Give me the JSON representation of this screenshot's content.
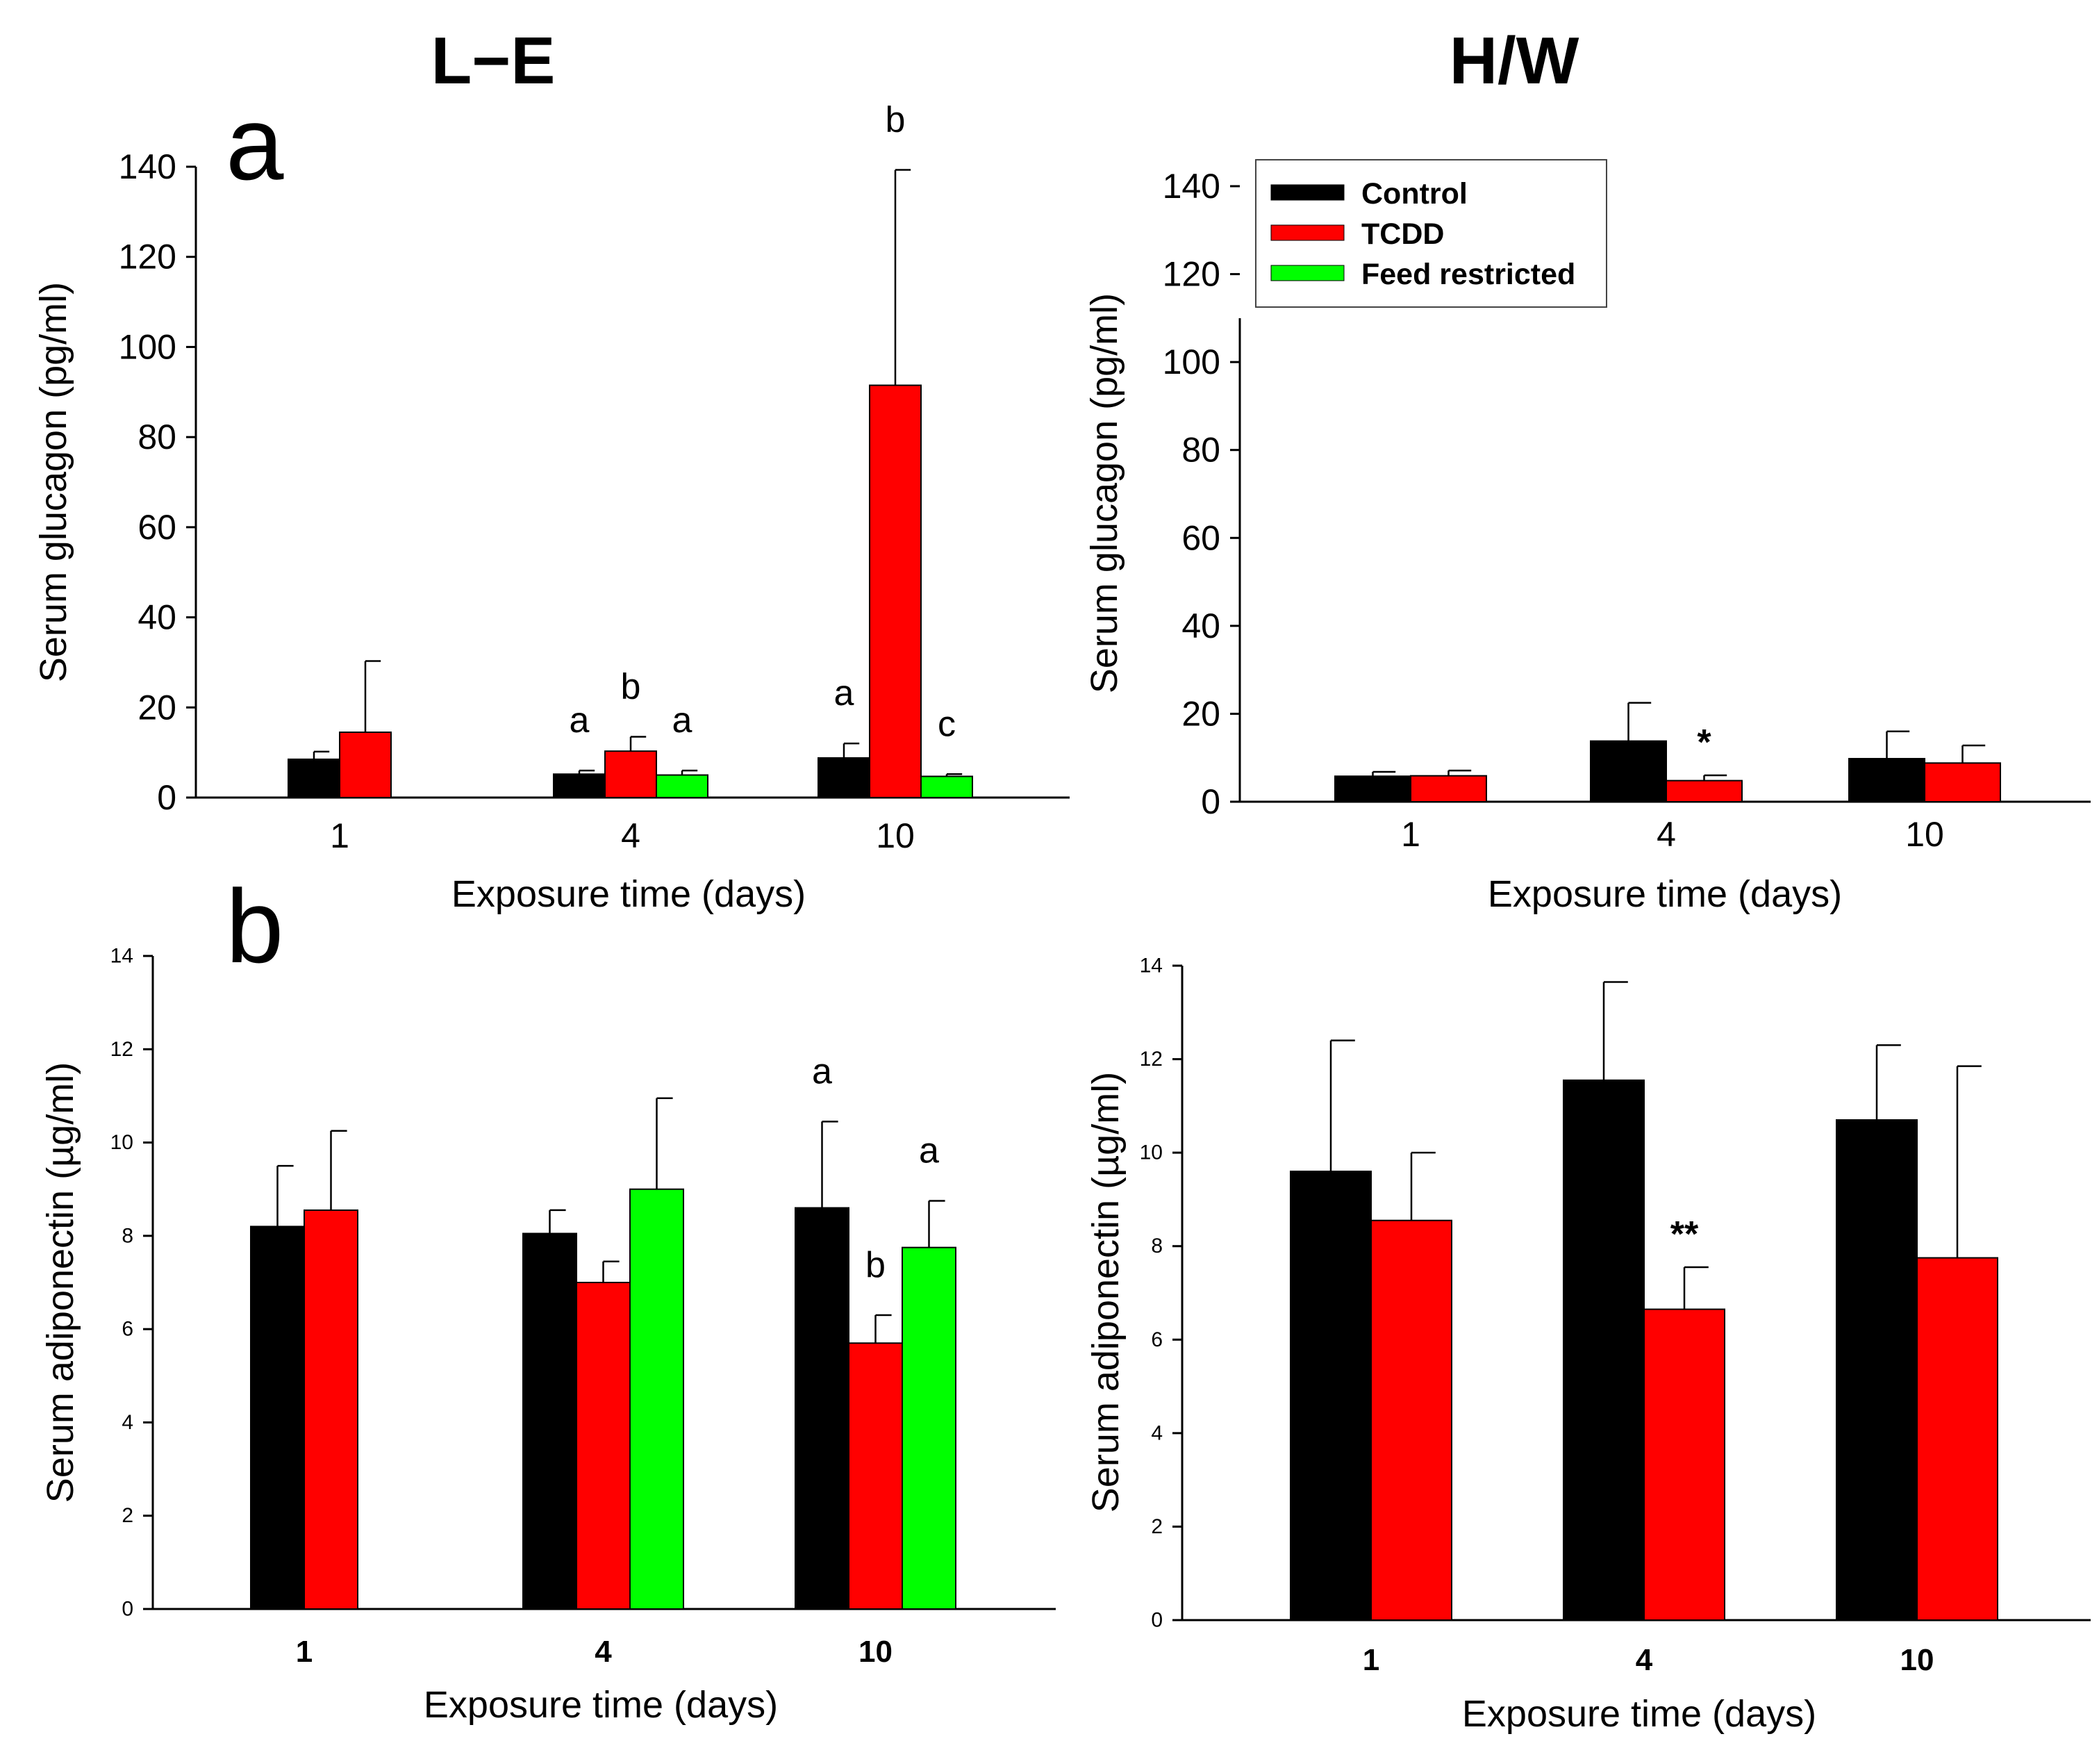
{
  "column_titles": {
    "left": "L−E",
    "right": "H/W"
  },
  "panel_letters": {
    "a": "a",
    "b": "b"
  },
  "colors": {
    "control": "#000000",
    "tcdd": "#ff0000",
    "feed_restricted": "#00ff00"
  },
  "legend": {
    "items": [
      {
        "label": "Control",
        "color": "#000000"
      },
      {
        "label": "TCDD",
        "color": "#ff0000"
      },
      {
        "label": "Feed restricted",
        "color": "#00ff00"
      }
    ]
  },
  "chart_data": [
    {
      "type": "bar",
      "xlabel": "Exposure time (days)",
      "ylabel": "Serum glucagon (pg/ml)",
      "ylim": [
        0,
        140
      ],
      "yticks": [
        0,
        20,
        40,
        60,
        80,
        100,
        120,
        140
      ],
      "categories": [
        "1",
        "4",
        "10"
      ],
      "series": [
        {
          "name": "Control",
          "values": [
            8.5,
            5.2,
            8.8
          ],
          "errors": [
            1.7,
            0.8,
            3.2
          ],
          "labels": [
            "",
            "a",
            "a"
          ]
        },
        {
          "name": "TCDD",
          "values": [
            14.5,
            10.3,
            91.5
          ],
          "errors": [
            15.8,
            3.2,
            47.8
          ],
          "labels": [
            "",
            "b",
            "b"
          ]
        },
        {
          "name": "Feed restricted",
          "values": [
            null,
            5.0,
            4.7
          ],
          "errors": [
            null,
            1.0,
            0.5
          ],
          "labels": [
            "",
            "a",
            "c"
          ]
        }
      ]
    },
    {
      "type": "bar",
      "xlabel": "Exposure time (days)",
      "ylabel": "Serum glucagon (pg/ml)",
      "ylim": [
        0,
        140
      ],
      "yticks": [
        0,
        20,
        40,
        60,
        80,
        100,
        120,
        140
      ],
      "categories": [
        "1",
        "4",
        "10"
      ],
      "legend_position": "top-left",
      "series": [
        {
          "name": "Control",
          "values": [
            5.8,
            13.8,
            9.8
          ],
          "errors": [
            1.0,
            8.7,
            6.2
          ],
          "labels": [
            "",
            "",
            ""
          ]
        },
        {
          "name": "TCDD",
          "values": [
            5.9,
            4.8,
            8.8
          ],
          "errors": [
            1.2,
            1.2,
            4.0
          ],
          "labels": [
            "",
            "*",
            ""
          ]
        }
      ]
    },
    {
      "type": "bar",
      "xlabel": "Exposure time (days)",
      "ylabel": "Serum adiponectin (µg/ml)",
      "ylim": [
        0,
        14
      ],
      "yticks": [
        0,
        2,
        4,
        6,
        8,
        10,
        12,
        14
      ],
      "categories": [
        "1",
        "4",
        "10"
      ],
      "series": [
        {
          "name": "Control",
          "values": [
            8.2,
            8.05,
            8.6
          ],
          "errors": [
            1.3,
            0.5,
            1.85
          ],
          "labels": [
            "",
            "",
            "a"
          ]
        },
        {
          "name": "TCDD",
          "values": [
            8.55,
            7.0,
            5.7
          ],
          "errors": [
            1.7,
            0.45,
            0.6
          ],
          "labels": [
            "",
            "",
            "b"
          ]
        },
        {
          "name": "Feed restricted",
          "values": [
            null,
            9.0,
            7.75
          ],
          "errors": [
            null,
            1.95,
            1.0
          ],
          "labels": [
            "",
            "",
            "a"
          ]
        }
      ]
    },
    {
      "type": "bar",
      "xlabel": "Exposure time (days)",
      "ylabel": "Serum adiponectin (µg/ml)",
      "ylim": [
        0,
        14
      ],
      "yticks": [
        0,
        2,
        4,
        6,
        8,
        10,
        12,
        14
      ],
      "categories": [
        "1",
        "4",
        "10"
      ],
      "series": [
        {
          "name": "Control",
          "values": [
            9.6,
            11.55,
            10.7
          ],
          "errors": [
            2.8,
            2.1,
            1.6
          ],
          "labels": [
            "",
            "",
            ""
          ]
        },
        {
          "name": "TCDD",
          "values": [
            8.55,
            6.65,
            7.75
          ],
          "errors": [
            1.45,
            0.9,
            4.1
          ],
          "labels": [
            "",
            "**",
            ""
          ]
        }
      ]
    }
  ]
}
